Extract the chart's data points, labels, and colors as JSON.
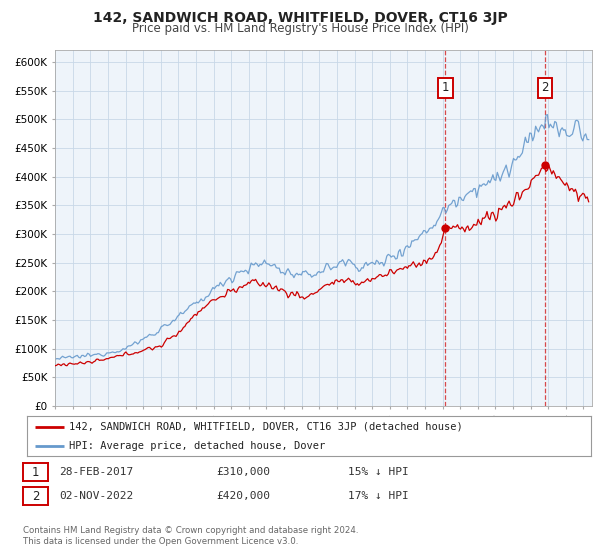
{
  "title": "142, SANDWICH ROAD, WHITFIELD, DOVER, CT16 3JP",
  "subtitle": "Price paid vs. HM Land Registry's House Price Index (HPI)",
  "title_fontsize": 10,
  "subtitle_fontsize": 8.5,
  "xlim_start": 1995.0,
  "xlim_end": 2025.5,
  "ylim_min": 0,
  "ylim_max": 620000,
  "yticks": [
    0,
    50000,
    100000,
    150000,
    200000,
    250000,
    300000,
    350000,
    400000,
    450000,
    500000,
    550000,
    600000
  ],
  "ytick_labels": [
    "£0",
    "£50K",
    "£100K",
    "£150K",
    "£200K",
    "£250K",
    "£300K",
    "£350K",
    "£400K",
    "£450K",
    "£500K",
    "£550K",
    "£600K"
  ],
  "red_line_color": "#cc0000",
  "blue_line_color": "#6699cc",
  "marker1_date": 2017.167,
  "marker1_value": 310000,
  "marker1_label": "1",
  "marker2_date": 2022.836,
  "marker2_value": 420000,
  "marker2_label": "2",
  "vline1_x": 2017.167,
  "vline2_x": 2022.836,
  "legend_label_red": "142, SANDWICH ROAD, WHITFIELD, DOVER, CT16 3JP (detached house)",
  "legend_label_blue": "HPI: Average price, detached house, Dover",
  "annotation1_box_label": "1",
  "annotation1_date": "28-FEB-2017",
  "annotation1_price": "£310,000",
  "annotation1_pct": "15% ↓ HPI",
  "annotation2_box_label": "2",
  "annotation2_date": "02-NOV-2022",
  "annotation2_price": "£420,000",
  "annotation2_pct": "17% ↓ HPI",
  "footer_text": "Contains HM Land Registry data © Crown copyright and database right 2024.\nThis data is licensed under the Open Government Licence v3.0.",
  "background_color": "#ffffff",
  "grid_color": "#c8d8e8",
  "plot_bg_color": "#eef4fa"
}
